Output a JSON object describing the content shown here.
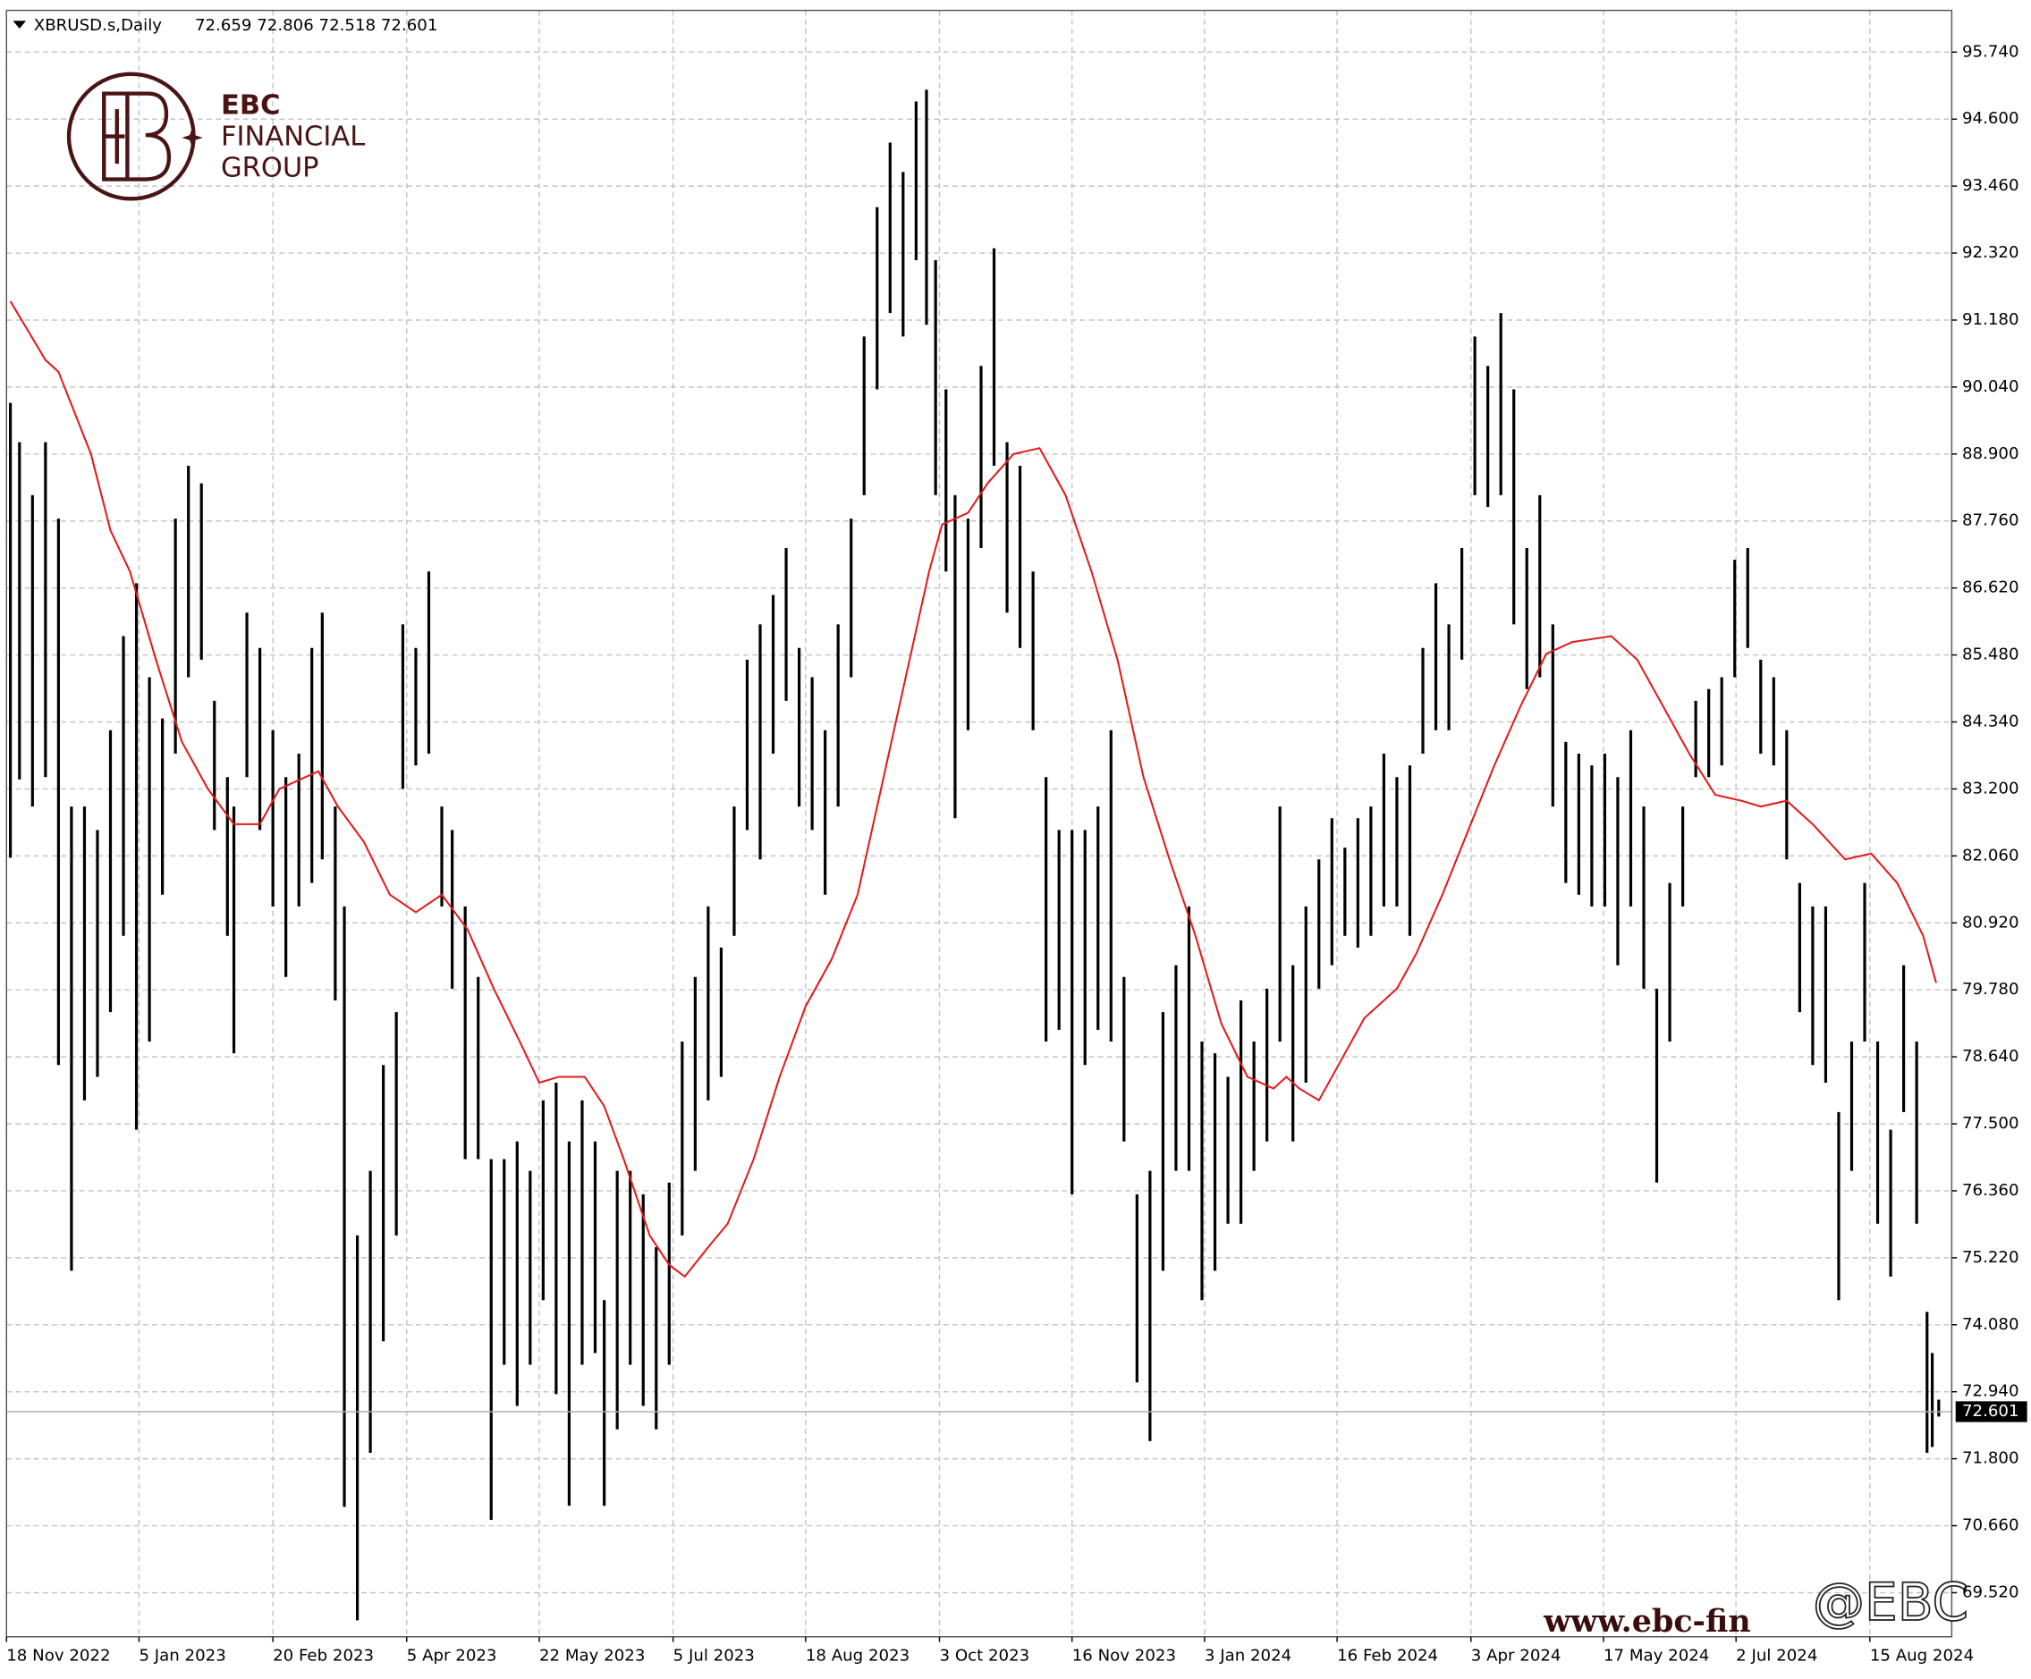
{
  "chart_data": {
    "type": "ohlc",
    "title": "XBRUSD.s,Daily",
    "subtitle": "72.659 72.806 72.518 72.601",
    "logo": {
      "line1": "EBC",
      "line2": "FINANCIAL",
      "line3": "GROUP"
    },
    "watermark": [
      "www.ebc-fin",
      "@EBC"
    ],
    "last_price": 72.601,
    "grid": true,
    "xlim": [
      -0.3,
      149.4
    ],
    "ylim": [
      68.77,
      96.45
    ],
    "xticks": [
      {
        "value": -0.3,
        "label": "18 Nov 2022"
      },
      {
        "value": 9.9,
        "label": "5 Jan 2023"
      },
      {
        "value": 20.2,
        "label": "20 Feb 2023"
      },
      {
        "value": 30.5,
        "label": "5 Apr 2023"
      },
      {
        "value": 40.7,
        "label": "22 May 2023"
      },
      {
        "value": 51,
        "label": "5 Jul 2023"
      },
      {
        "value": 61.2,
        "label": "18 Aug 2023"
      },
      {
        "value": 71.5,
        "label": "3 Oct 2023"
      },
      {
        "value": 81.7,
        "label": "16 Nov 2023"
      },
      {
        "value": 91.9,
        "label": "3 Jan 2024"
      },
      {
        "value": 102.1,
        "label": "16 Feb 2024"
      },
      {
        "value": 112.4,
        "label": "3 Apr 2024"
      },
      {
        "value": 122.6,
        "label": "17 May 2024"
      },
      {
        "value": 132.8,
        "label": "2 Jul 2024"
      },
      {
        "value": 143.1,
        "label": "15 Aug 2024"
      }
    ],
    "yticks": [
      {
        "value": 69.52,
        "label": "69.520"
      },
      {
        "value": 70.66,
        "label": "70.660"
      },
      {
        "value": 71.8,
        "label": "71.800"
      },
      {
        "value": 72.94,
        "label": "72.940"
      },
      {
        "value": 74.08,
        "label": "74.080"
      },
      {
        "value": 75.22,
        "label": "75.220"
      },
      {
        "value": 76.36,
        "label": "76.360"
      },
      {
        "value": 77.5,
        "label": "77.500"
      },
      {
        "value": 78.64,
        "label": "78.640"
      },
      {
        "value": 79.78,
        "label": "79.780"
      },
      {
        "value": 80.92,
        "label": "80.920"
      },
      {
        "value": 82.06,
        "label": "82.060"
      },
      {
        "value": 83.2,
        "label": "83.200"
      },
      {
        "value": 84.34,
        "label": "84.340"
      },
      {
        "value": 85.48,
        "label": "85.480"
      },
      {
        "value": 86.62,
        "label": "86.620"
      },
      {
        "value": 87.76,
        "label": "87.760"
      },
      {
        "value": 88.9,
        "label": "88.900"
      },
      {
        "value": 90.04,
        "label": "90.040"
      },
      {
        "value": 91.18,
        "label": "91.180"
      },
      {
        "value": 92.32,
        "label": "92.320"
      },
      {
        "value": 93.46,
        "label": "93.460"
      },
      {
        "value": 94.6,
        "label": "94.600"
      },
      {
        "value": 95.74,
        "label": "95.740"
      }
    ],
    "ohlc": {
      "color": "#000000",
      "x": [
        0,
        0.7,
        1.7,
        2.7,
        3.7,
        4.7,
        5.7,
        6.7,
        7.7,
        8.7,
        9.7,
        10.7,
        11.7,
        12.7,
        13.7,
        14.7,
        15.7,
        16.7,
        17.2,
        18.2,
        19.2,
        20.2,
        21.2,
        22.2,
        23.2,
        24,
        25,
        25.7,
        26.7,
        27.7,
        28.7,
        29.7,
        30.2,
        31.2,
        32.2,
        33.2,
        34,
        35,
        36,
        37,
        38,
        39,
        40,
        41,
        42,
        43,
        44,
        45,
        45.7,
        46.7,
        47.7,
        48.7,
        49.7,
        50.7,
        51.7,
        52.7,
        53.7,
        54.7,
        55.7,
        56.7,
        57.7,
        58.7,
        59.7,
        60.7,
        61.7,
        62.7,
        63.7,
        64.7,
        65.7,
        66.7,
        67.7,
        68.7,
        69.7,
        70.5,
        71.2,
        72,
        72.7,
        73.7,
        74.7,
        75.7,
        76.7,
        77.7,
        78.7,
        79.7,
        80.7,
        81.7,
        82.7,
        83.7,
        84.7,
        85.7,
        86.7,
        87.7,
        88.7,
        89.7,
        90.7,
        91.7,
        92.7,
        93.7,
        94.7,
        95.7,
        96.7,
        97.7,
        98.7,
        99.7,
        100.7,
        101.7,
        102.7,
        103.7,
        104.7,
        105.7,
        106.7,
        107.7,
        108.7,
        109.7,
        110.7,
        111.7,
        112.7,
        113.7,
        114.7,
        115.7,
        116.7,
        117.7,
        118.7,
        119.7,
        120.7,
        121.7,
        122.7,
        123.7,
        124.7,
        125.7,
        126.7,
        127.7,
        128.7,
        129.7,
        130.7,
        131.7,
        132.7,
        133.7,
        134.7,
        135.7,
        136.7,
        137.7,
        138.7,
        139.7,
        140.7,
        141.7,
        142.7,
        143.7,
        144.7,
        145.7,
        146.7,
        147.5,
        147.9,
        148.4
      ],
      "high": [
        89.77,
        89.1,
        88.2,
        89.1,
        87.8,
        82.9,
        82.9,
        82.5,
        84.2,
        85.8,
        86.7,
        85.1,
        84.4,
        87.8,
        88.7,
        88.4,
        84.7,
        83.4,
        82.9,
        86.2,
        85.6,
        84.2,
        83.4,
        83.8,
        85.6,
        86.2,
        82.9,
        81.2,
        75.6,
        76.7,
        78.5,
        79.4,
        86.0,
        85.6,
        86.9,
        82.9,
        82.5,
        81.2,
        80.0,
        76.9,
        76.9,
        77.2,
        76.7,
        77.9,
        78.2,
        77.2,
        77.9,
        77.2,
        74.5,
        76.7,
        76.7,
        76.3,
        75.4,
        76.5,
        78.9,
        80.0,
        81.2,
        80.5,
        82.9,
        85.4,
        86.0,
        86.5,
        87.3,
        85.6,
        85.1,
        84.2,
        86.0,
        87.8,
        90.9,
        93.1,
        94.2,
        93.7,
        94.9,
        95.1,
        92.2,
        90.0,
        88.2,
        87.8,
        90.4,
        92.4,
        89.1,
        88.7,
        86.9,
        83.4,
        82.5,
        82.5,
        82.5,
        82.9,
        84.2,
        80.0,
        76.3,
        76.7,
        79.4,
        80.2,
        81.2,
        78.9,
        78.7,
        78.3,
        79.6,
        78.9,
        79.8,
        82.9,
        80.2,
        81.2,
        82.0,
        82.7,
        82.2,
        82.7,
        82.9,
        83.8,
        83.4,
        83.6,
        85.6,
        86.7,
        86.0,
        87.3,
        90.9,
        90.4,
        91.3,
        90.0,
        87.3,
        88.2,
        86.0,
        84.0,
        83.8,
        83.6,
        83.8,
        83.4,
        84.2,
        82.9,
        79.8,
        81.6,
        82.9,
        84.7,
        84.9,
        85.1,
        87.1,
        87.3,
        85.4,
        85.1,
        84.2,
        81.6,
        81.2,
        81.2,
        77.7,
        78.9,
        81.6,
        78.9,
        77.4,
        80.2,
        78.9,
        74.3,
        73.6,
        72.806
      ],
      "low": [
        82.03,
        83.36,
        82.9,
        83.4,
        78.5,
        75.0,
        77.9,
        78.3,
        79.4,
        80.7,
        77.4,
        78.9,
        81.4,
        83.8,
        85.1,
        85.4,
        82.5,
        80.7,
        78.7,
        83.4,
        82.5,
        81.2,
        80.0,
        81.2,
        81.6,
        82.0,
        79.6,
        70.98,
        69.05,
        71.9,
        73.8,
        75.6,
        83.2,
        83.6,
        83.8,
        81.2,
        79.8,
        76.9,
        76.9,
        70.76,
        73.4,
        72.7,
        73.4,
        74.5,
        72.9,
        71.0,
        73.4,
        73.6,
        71.0,
        72.3,
        73.4,
        72.7,
        72.3,
        73.4,
        75.6,
        76.7,
        77.9,
        78.3,
        80.7,
        82.5,
        82.0,
        83.8,
        84.7,
        82.9,
        82.5,
        81.4,
        82.9,
        85.1,
        88.2,
        90.0,
        91.3,
        90.9,
        92.2,
        91.1,
        88.2,
        86.9,
        82.7,
        84.2,
        87.3,
        88.7,
        86.2,
        85.6,
        84.2,
        78.9,
        79.1,
        76.3,
        78.5,
        79.1,
        78.9,
        77.2,
        73.1,
        72.1,
        75.0,
        76.7,
        76.7,
        74.5,
        75.0,
        75.8,
        75.8,
        76.7,
        77.2,
        78.9,
        77.2,
        78.2,
        79.8,
        80.2,
        80.7,
        80.5,
        80.7,
        81.2,
        81.2,
        80.7,
        83.8,
        84.2,
        84.2,
        85.4,
        88.2,
        88.0,
        88.2,
        86.0,
        84.9,
        85.1,
        82.9,
        81.6,
        81.4,
        81.2,
        81.2,
        80.2,
        81.2,
        79.8,
        76.5,
        78.9,
        81.2,
        83.4,
        83.4,
        83.6,
        85.1,
        85.6,
        83.8,
        83.6,
        82.0,
        79.4,
        78.5,
        78.2,
        74.5,
        76.7,
        78.9,
        75.8,
        74.9,
        77.7,
        75.8,
        71.9,
        72.0,
        72.518
      ]
    },
    "series": [
      {
        "color": "#e31a1c",
        "x": [
          0,
          2.7,
          3.7,
          6.2,
          7.7,
          9.2,
          11.2,
          13.2,
          15.2,
          17.2,
          19.2,
          20.7,
          23.7,
          25.2,
          27.2,
          29.2,
          31.2,
          33.2,
          35.2,
          37.2,
          39.2,
          40.7,
          42.2,
          44.2,
          45.7,
          47.2,
          49.2,
          50.7,
          51.9,
          53.7,
          55.2,
          57.2,
          59.2,
          61.2,
          63.2,
          65.2,
          67.2,
          69.2,
          70.7,
          71.7,
          73.7,
          75.2,
          77.2,
          79.2,
          81.2,
          83.2,
          85.2,
          87.2,
          89.2,
          91.2,
          93.2,
          95.2,
          97.2,
          98.2,
          99.2,
          100.7,
          102.2,
          104.2,
          106.7,
          108.2,
          110.2,
          112.2,
          114.2,
          116.2,
          118.2,
          120.2,
          123.2,
          125.2,
          127.2,
          129.2,
          131.2,
          133.2,
          134.7,
          136.7,
          138.7,
          141.2,
          143.2,
          145.2,
          147.2,
          148.2
        ],
        "values": [
          91.5,
          90.5,
          90.3,
          88.9,
          87.6,
          86.9,
          85.4,
          84.0,
          83.2,
          82.6,
          82.6,
          83.2,
          83.5,
          82.9,
          82.3,
          81.4,
          81.1,
          81.4,
          80.8,
          79.8,
          78.9,
          78.2,
          78.3,
          78.3,
          77.8,
          76.9,
          75.6,
          75.1,
          74.9,
          75.4,
          75.8,
          76.9,
          78.3,
          79.5,
          80.3,
          81.4,
          83.4,
          85.4,
          86.9,
          87.7,
          87.9,
          88.4,
          88.9,
          89.0,
          88.2,
          86.9,
          85.4,
          83.4,
          82.0,
          80.7,
          79.2,
          78.3,
          78.1,
          78.3,
          78.1,
          77.9,
          78.5,
          79.3,
          79.8,
          80.4,
          81.4,
          82.5,
          83.6,
          84.6,
          85.5,
          85.7,
          85.8,
          85.4,
          84.6,
          83.8,
          83.1,
          83.0,
          82.9,
          83.0,
          82.6,
          82.0,
          82.1,
          81.6,
          80.7,
          79.9
        ]
      }
    ]
  }
}
